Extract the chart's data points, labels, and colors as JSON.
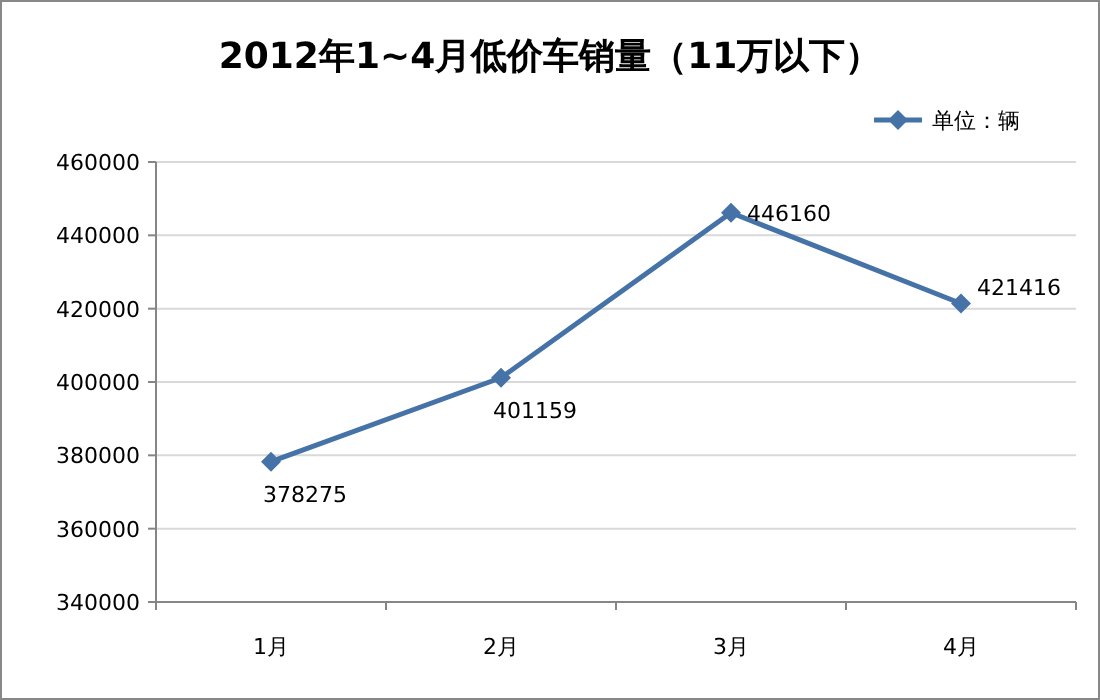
{
  "chart_data": {
    "type": "line",
    "title": "2012年1~4月低价车销量（11万以下）",
    "categories": [
      "1月",
      "2月",
      "3月",
      "4月"
    ],
    "series": [
      {
        "name": "单位：辆",
        "color": "#4572a7",
        "values": [
          378275,
          401159,
          446160,
          421416
        ]
      }
    ],
    "ylim": [
      340000,
      460000
    ],
    "yticks": [
      340000,
      360000,
      380000,
      400000,
      420000,
      440000,
      460000
    ],
    "grid": "y",
    "legend": "top right",
    "marker": "diamond",
    "line_style": "solid",
    "data_labels": true
  }
}
